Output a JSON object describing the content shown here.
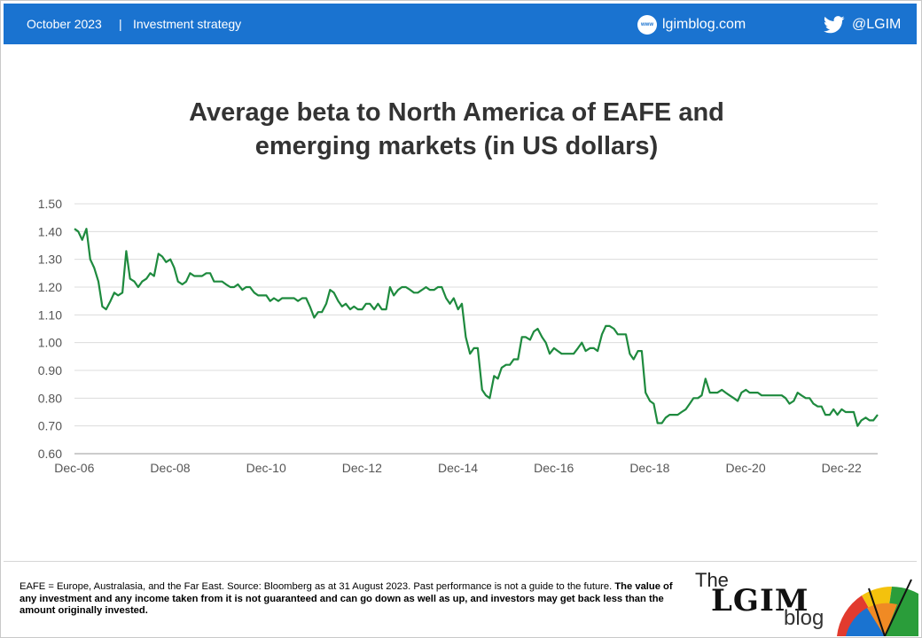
{
  "header": {
    "date": "October 2023",
    "separator": "|",
    "topic": "Investment strategy",
    "website": "lgimblog.com",
    "website_icon_label": "www",
    "twitter": "@LGIM",
    "background_color": "#1a73d0"
  },
  "chart_data": {
    "type": "line",
    "title_line1": "Average beta to North America of EAFE and",
    "title_line2": "emerging markets (in US dollars)",
    "xlabel": "",
    "ylabel": "",
    "ylim": [
      0.6,
      1.5
    ],
    "yticks": [
      "1.50",
      "1.40",
      "1.30",
      "1.20",
      "1.10",
      "1.00",
      "0.90",
      "0.80",
      "0.70",
      "0.60"
    ],
    "xticks": [
      "Dec-06",
      "Dec-08",
      "Dec-10",
      "Dec-12",
      "Dec-14",
      "Dec-16",
      "Dec-18",
      "Dec-20",
      "Dec-22"
    ],
    "xlim": [
      2006.92,
      2023.67
    ],
    "grid": true,
    "legend": "none",
    "series": [
      {
        "color": "#1e8a3e",
        "x": [
          2006.92,
          2007.0,
          2007.08,
          2007.17,
          2007.25,
          2007.33,
          2007.42,
          2007.5,
          2007.58,
          2007.67,
          2007.75,
          2007.83,
          2007.92,
          2008.0,
          2008.08,
          2008.17,
          2008.25,
          2008.33,
          2008.42,
          2008.5,
          2008.58,
          2008.67,
          2008.75,
          2008.83,
          2008.92,
          2009.0,
          2009.08,
          2009.17,
          2009.25,
          2009.33,
          2009.42,
          2009.5,
          2009.58,
          2009.67,
          2009.75,
          2009.83,
          2009.92,
          2010.0,
          2010.08,
          2010.17,
          2010.25,
          2010.33,
          2010.42,
          2010.5,
          2010.58,
          2010.67,
          2010.75,
          2010.83,
          2010.92,
          2011.0,
          2011.08,
          2011.17,
          2011.25,
          2011.33,
          2011.42,
          2011.5,
          2011.58,
          2011.67,
          2011.75,
          2011.83,
          2011.92,
          2012.0,
          2012.08,
          2012.17,
          2012.25,
          2012.33,
          2012.42,
          2012.5,
          2012.58,
          2012.67,
          2012.75,
          2012.83,
          2012.92,
          2013.0,
          2013.08,
          2013.17,
          2013.25,
          2013.33,
          2013.42,
          2013.5,
          2013.58,
          2013.67,
          2013.75,
          2013.83,
          2013.92,
          2014.0,
          2014.08,
          2014.17,
          2014.25,
          2014.33,
          2014.42,
          2014.5,
          2014.58,
          2014.67,
          2014.75,
          2014.83,
          2014.92,
          2015.0,
          2015.08,
          2015.17,
          2015.25,
          2015.33,
          2015.42,
          2015.5,
          2015.58,
          2015.67,
          2015.75,
          2015.83,
          2015.92,
          2016.0,
          2016.08,
          2016.17,
          2016.25,
          2016.33,
          2016.42,
          2016.5,
          2016.58,
          2016.67,
          2016.75,
          2016.83,
          2016.92,
          2017.0,
          2017.08,
          2017.17,
          2017.25,
          2017.33,
          2017.42,
          2017.5,
          2017.58,
          2017.67,
          2017.75,
          2017.83,
          2017.92,
          2018.0,
          2018.08,
          2018.17,
          2018.25,
          2018.33,
          2018.42,
          2018.5,
          2018.58,
          2018.67,
          2018.75,
          2018.83,
          2018.92,
          2019.0,
          2019.08,
          2019.17,
          2019.25,
          2019.33,
          2019.42,
          2019.5,
          2019.58,
          2019.67,
          2019.75,
          2019.83,
          2019.92,
          2020.0,
          2020.08,
          2020.17,
          2020.25,
          2020.33,
          2020.42,
          2020.5,
          2020.58,
          2020.67,
          2020.75,
          2020.83,
          2020.92,
          2021.0,
          2021.08,
          2021.17,
          2021.25,
          2021.33,
          2021.42,
          2021.5,
          2021.58,
          2021.67,
          2021.75,
          2021.83,
          2021.92,
          2022.0,
          2022.08,
          2022.17,
          2022.25,
          2022.33,
          2022.42,
          2022.5,
          2022.58,
          2022.67,
          2022.75,
          2022.83,
          2022.92,
          2023.0,
          2023.08,
          2023.17,
          2023.25,
          2023.33,
          2023.42,
          2023.5,
          2023.58,
          2023.67
        ],
        "y": [
          1.41,
          1.4,
          1.37,
          1.41,
          1.3,
          1.27,
          1.22,
          1.13,
          1.12,
          1.15,
          1.18,
          1.17,
          1.18,
          1.33,
          1.23,
          1.22,
          1.2,
          1.22,
          1.23,
          1.25,
          1.24,
          1.32,
          1.31,
          1.29,
          1.3,
          1.27,
          1.22,
          1.21,
          1.22,
          1.25,
          1.24,
          1.24,
          1.24,
          1.25,
          1.25,
          1.22,
          1.22,
          1.22,
          1.21,
          1.2,
          1.2,
          1.21,
          1.19,
          1.2,
          1.2,
          1.18,
          1.17,
          1.17,
          1.17,
          1.15,
          1.16,
          1.15,
          1.16,
          1.16,
          1.16,
          1.16,
          1.15,
          1.16,
          1.16,
          1.13,
          1.09,
          1.11,
          1.11,
          1.14,
          1.19,
          1.18,
          1.15,
          1.13,
          1.14,
          1.12,
          1.13,
          1.12,
          1.12,
          1.14,
          1.14,
          1.12,
          1.14,
          1.12,
          1.12,
          1.2,
          1.17,
          1.19,
          1.2,
          1.2,
          1.19,
          1.18,
          1.18,
          1.19,
          1.2,
          1.19,
          1.19,
          1.2,
          1.2,
          1.16,
          1.14,
          1.16,
          1.12,
          1.14,
          1.02,
          0.96,
          0.98,
          0.98,
          0.83,
          0.81,
          0.8,
          0.88,
          0.87,
          0.91,
          0.92,
          0.92,
          0.94,
          0.94,
          1.02,
          1.02,
          1.01,
          1.04,
          1.05,
          1.02,
          1.0,
          0.96,
          0.98,
          0.97,
          0.96,
          0.96,
          0.96,
          0.96,
          0.98,
          1.0,
          0.97,
          0.98,
          0.98,
          0.97,
          1.03,
          1.06,
          1.06,
          1.05,
          1.03,
          1.03,
          1.03,
          0.96,
          0.94,
          0.97,
          0.97,
          0.82,
          0.79,
          0.78,
          0.71,
          0.71,
          0.73,
          0.74,
          0.74,
          0.74,
          0.75,
          0.76,
          0.78,
          0.8,
          0.8,
          0.81,
          0.87,
          0.82,
          0.82,
          0.82,
          0.83,
          0.82,
          0.81,
          0.8,
          0.79,
          0.82,
          0.83,
          0.82,
          0.82,
          0.82,
          0.81,
          0.81,
          0.81,
          0.81,
          0.81,
          0.81,
          0.8,
          0.78,
          0.79,
          0.82,
          0.81,
          0.8,
          0.8,
          0.78,
          0.77,
          0.77,
          0.74,
          0.74,
          0.76,
          0.74,
          0.76,
          0.75,
          0.75,
          0.75,
          0.7,
          0.72,
          0.73,
          0.72,
          0.72,
          0.74
        ]
      }
    ]
  },
  "footer": {
    "note_plain": "EAFE  = Europe, Australasia, and the Far East. Source: Bloomberg as at 31 August 2023. Past performance is not a guide to the future. ",
    "note_bold": "The value of any investment and any income taken from it is not guaranteed and can go down as well as up, and investors may get back less than the amount originally  invested.",
    "logo_the": "The",
    "logo_main": "LGIM",
    "logo_blog": "blog"
  }
}
